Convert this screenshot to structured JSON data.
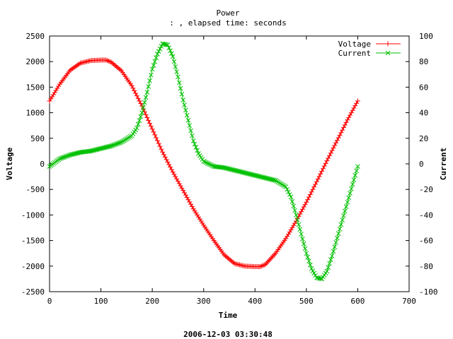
{
  "chart_data": {
    "type": "line",
    "title": "Power",
    "subtitle": ": , elapsed time:  seconds",
    "xlabel": "Time",
    "ylabel": "Voltage",
    "y2label": "Current",
    "footer": "2006-12-03 03:30:48",
    "xlim": [
      0,
      700
    ],
    "ylim": [
      -2500,
      2500
    ],
    "y2lim": [
      -100,
      100
    ],
    "xticks": [
      0,
      100,
      200,
      300,
      400,
      500,
      600,
      700
    ],
    "yticks": [
      -2500,
      -2000,
      -1500,
      -1000,
      -500,
      0,
      500,
      1000,
      1500,
      2000,
      2500
    ],
    "y2ticks": [
      -100,
      -80,
      -60,
      -40,
      -20,
      0,
      20,
      40,
      60,
      80,
      100
    ],
    "grid": false,
    "legend": "top-right",
    "series": [
      {
        "name": "Voltage",
        "axis": "y",
        "color": "#ff0000",
        "marker": "plus",
        "x": [
          0,
          20,
          40,
          60,
          80,
          100,
          110,
          120,
          140,
          160,
          180,
          200,
          220,
          240,
          260,
          280,
          300,
          320,
          340,
          360,
          380,
          400,
          410,
          420,
          440,
          460,
          480,
          500,
          520,
          540,
          560,
          580,
          600
        ],
        "y": [
          1230,
          1560,
          1830,
          1970,
          2020,
          2030,
          2030,
          1990,
          1820,
          1530,
          1130,
          680,
          230,
          -160,
          -520,
          -880,
          -1200,
          -1500,
          -1780,
          -1950,
          -2000,
          -2010,
          -2010,
          -1970,
          -1750,
          -1460,
          -1120,
          -750,
          -350,
          60,
          460,
          860,
          1230
        ]
      },
      {
        "name": "Current",
        "axis": "y2",
        "color": "#00c000",
        "marker": "x",
        "x": [
          0,
          20,
          40,
          60,
          80,
          100,
          120,
          140,
          160,
          170,
          180,
          190,
          200,
          210,
          220,
          230,
          240,
          250,
          260,
          270,
          280,
          290,
          300,
          320,
          340,
          360,
          380,
          400,
          420,
          440,
          460,
          470,
          480,
          490,
          500,
          510,
          520,
          530,
          540,
          550,
          560,
          570,
          580,
          590,
          600
        ],
        "y": [
          -2,
          4,
          7,
          9,
          10,
          12,
          14,
          17,
          22,
          28,
          40,
          56,
          74,
          86,
          94,
          93,
          84,
          68,
          50,
          34,
          18,
          8,
          2,
          -2,
          -3,
          -5,
          -7,
          -9,
          -11,
          -13,
          -18,
          -26,
          -40,
          -55,
          -70,
          -82,
          -89,
          -90,
          -84,
          -72,
          -58,
          -44,
          -30,
          -16,
          -2
        ]
      }
    ]
  }
}
